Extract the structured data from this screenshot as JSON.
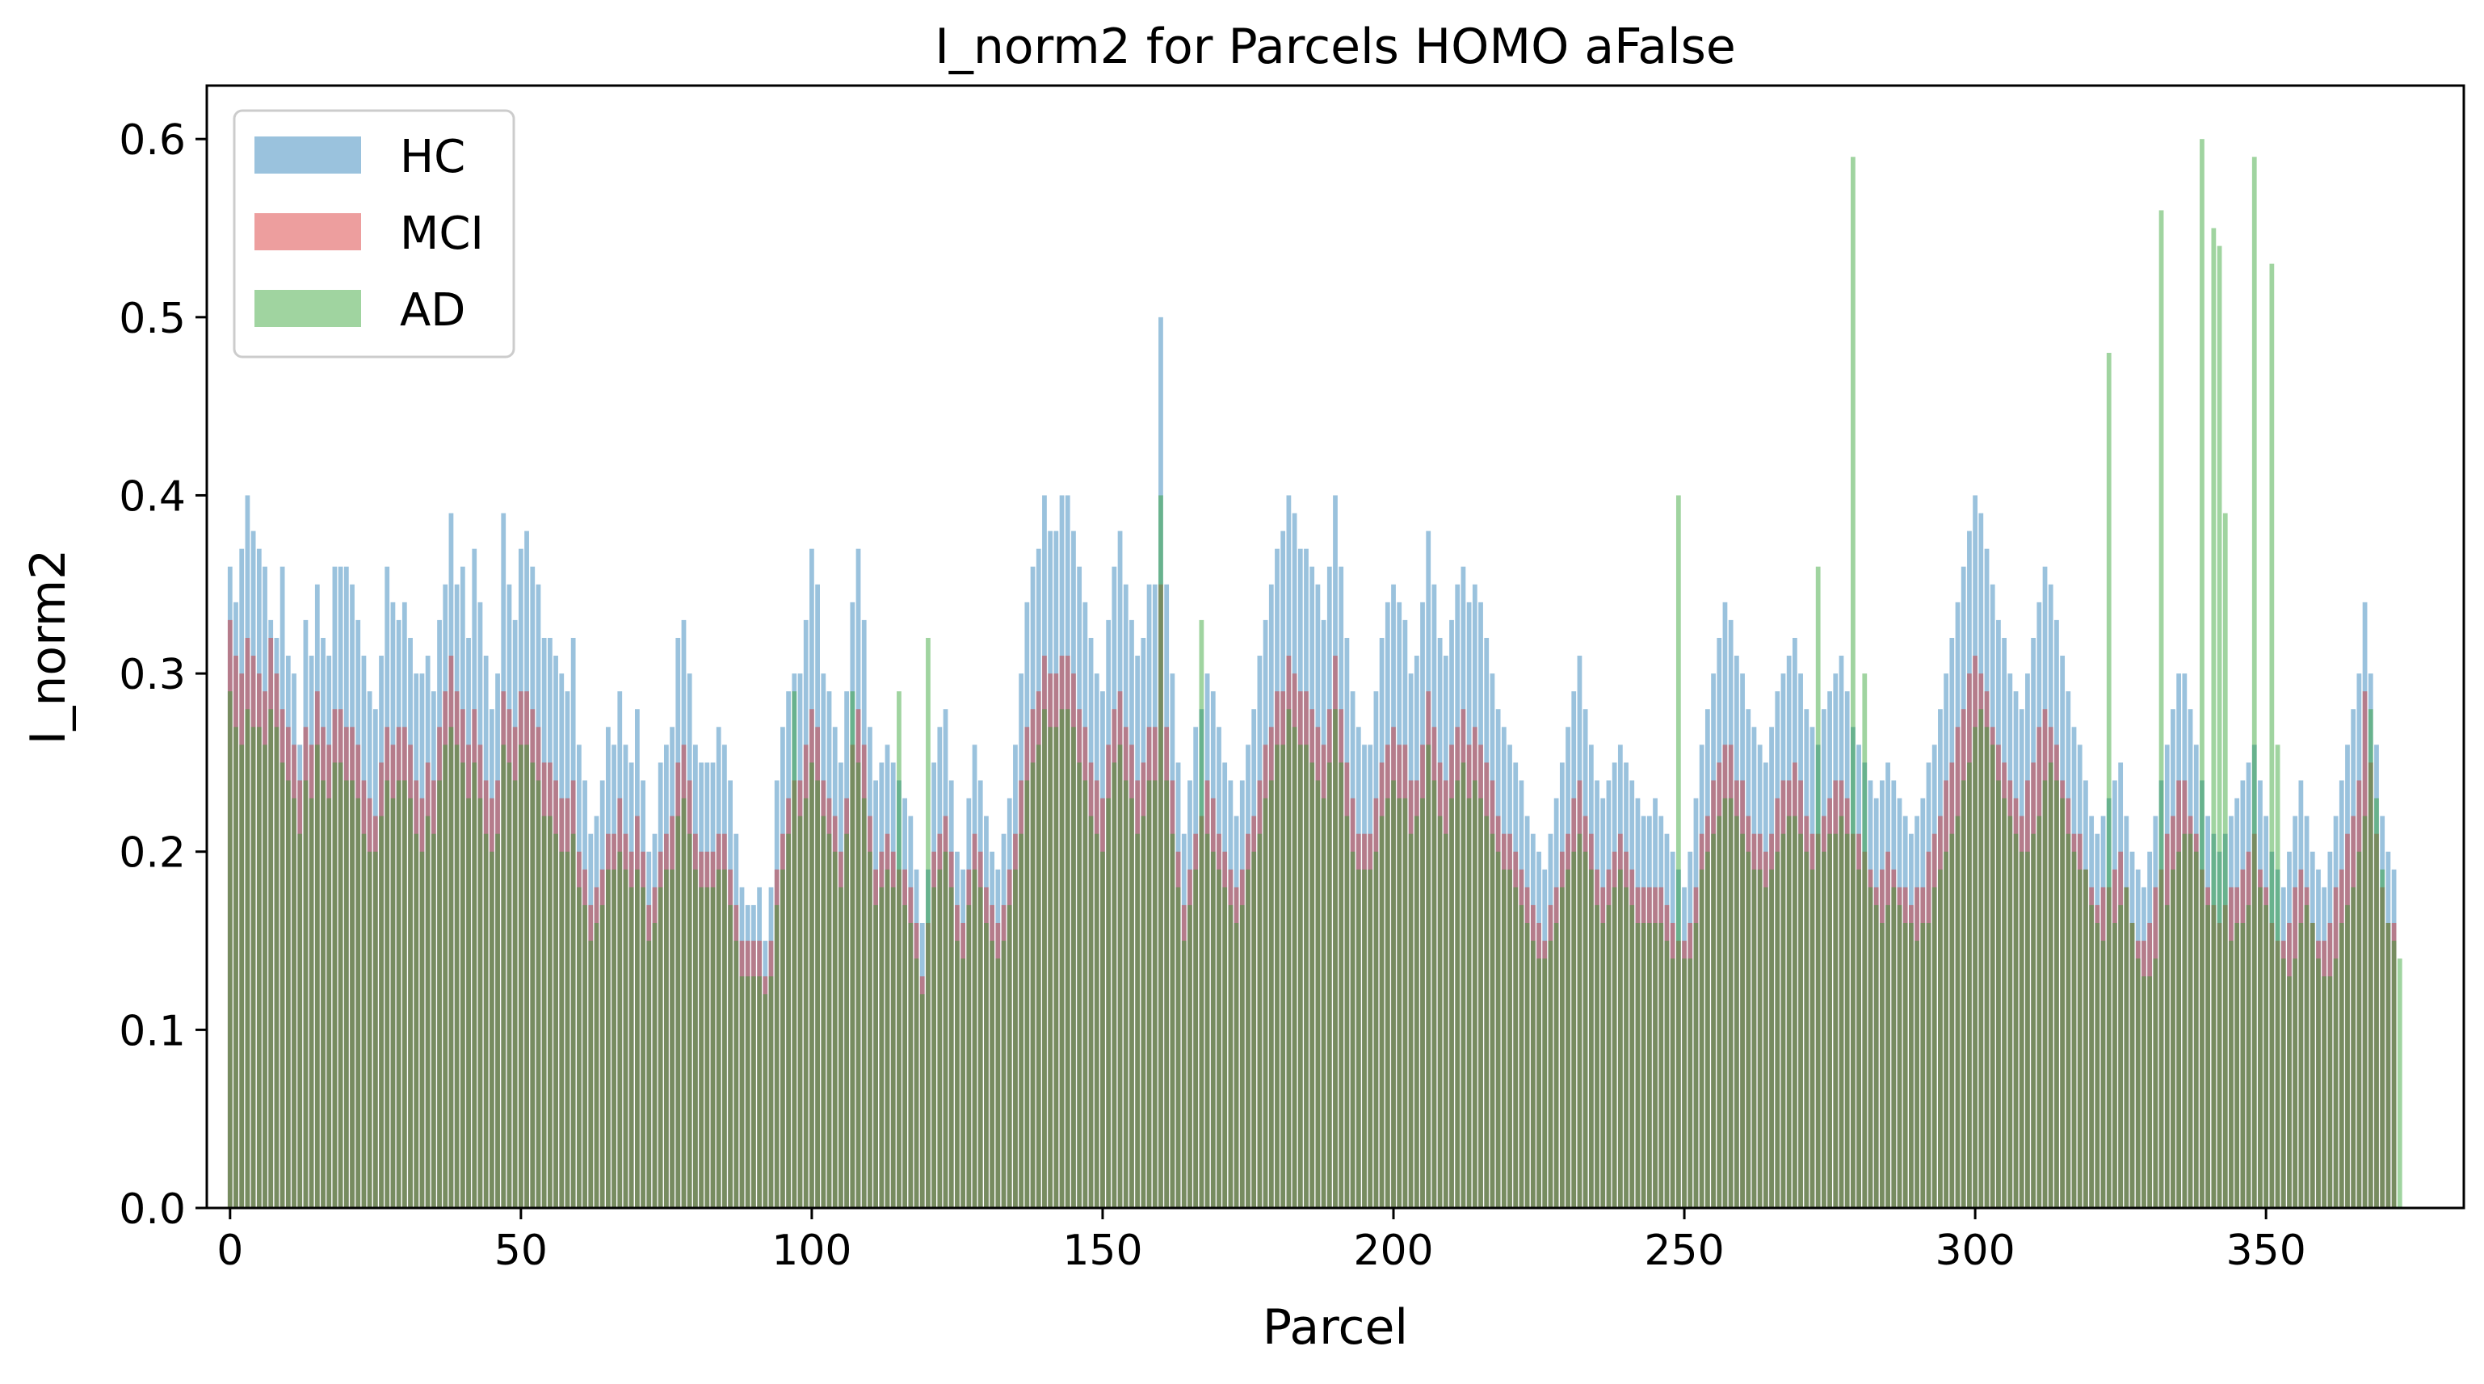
{
  "chart_data": {
    "type": "bar",
    "title": "I_norm2 for Parcels HOMO aFalse",
    "xlabel": "Parcel",
    "ylabel": "I_norm2",
    "xlim": [
      -4,
      384
    ],
    "ylim": [
      0,
      0.63
    ],
    "xticks": [
      0,
      50,
      100,
      150,
      200,
      250,
      300,
      350
    ],
    "yticks": [
      0.0,
      0.1,
      0.2,
      0.3,
      0.4,
      0.5,
      0.6
    ],
    "grid": false,
    "legend_position": "top-left",
    "x": "parcel indices 0-378 (one bar per parcel)",
    "series": [
      {
        "name": "HC",
        "color": "#1f77b4",
        "opacity": 0.45,
        "values": [
          0.36,
          0.34,
          0.37,
          0.4,
          0.38,
          0.37,
          0.36,
          0.33,
          0.32,
          0.36,
          0.31,
          0.3,
          0.26,
          0.33,
          0.31,
          0.35,
          0.32,
          0.31,
          0.36,
          0.36,
          0.36,
          0.35,
          0.33,
          0.31,
          0.29,
          0.28,
          0.31,
          0.36,
          0.34,
          0.33,
          0.34,
          0.32,
          0.3,
          0.3,
          0.31,
          0.29,
          0.33,
          0.35,
          0.39,
          0.35,
          0.36,
          0.32,
          0.37,
          0.34,
          0.31,
          0.28,
          0.3,
          0.39,
          0.35,
          0.33,
          0.37,
          0.38,
          0.36,
          0.35,
          0.32,
          0.32,
          0.31,
          0.3,
          0.29,
          0.32,
          0.26,
          0.24,
          0.21,
          0.22,
          0.24,
          0.27,
          0.26,
          0.29,
          0.26,
          0.25,
          0.28,
          0.24,
          0.2,
          0.21,
          0.25,
          0.26,
          0.27,
          0.32,
          0.33,
          0.3,
          0.26,
          0.25,
          0.25,
          0.25,
          0.27,
          0.26,
          0.24,
          0.21,
          0.18,
          0.17,
          0.17,
          0.18,
          0.15,
          0.18,
          0.24,
          0.27,
          0.29,
          0.3,
          0.3,
          0.33,
          0.37,
          0.35,
          0.3,
          0.29,
          0.27,
          0.25,
          0.29,
          0.34,
          0.37,
          0.33,
          0.27,
          0.24,
          0.25,
          0.26,
          0.25,
          0.24,
          0.23,
          0.22,
          0.19,
          0.16,
          0.19,
          0.25,
          0.27,
          0.28,
          0.24,
          0.2,
          0.19,
          0.23,
          0.26,
          0.24,
          0.22,
          0.2,
          0.19,
          0.21,
          0.23,
          0.26,
          0.3,
          0.34,
          0.36,
          0.37,
          0.4,
          0.38,
          0.38,
          0.4,
          0.4,
          0.38,
          0.36,
          0.34,
          0.32,
          0.3,
          0.29,
          0.33,
          0.36,
          0.38,
          0.35,
          0.33,
          0.31,
          0.32,
          0.35,
          0.35,
          0.5,
          0.35,
          0.3,
          0.25,
          0.21,
          0.24,
          0.27,
          0.28,
          0.3,
          0.29,
          0.27,
          0.25,
          0.24,
          0.22,
          0.24,
          0.26,
          0.28,
          0.31,
          0.33,
          0.35,
          0.37,
          0.38,
          0.4,
          0.39,
          0.37,
          0.37,
          0.36,
          0.35,
          0.33,
          0.36,
          0.4,
          0.36,
          0.32,
          0.29,
          0.27,
          0.26,
          0.26,
          0.29,
          0.32,
          0.34,
          0.35,
          0.34,
          0.33,
          0.3,
          0.31,
          0.34,
          0.38,
          0.35,
          0.32,
          0.31,
          0.33,
          0.35,
          0.36,
          0.34,
          0.35,
          0.34,
          0.32,
          0.3,
          0.28,
          0.27,
          0.26,
          0.25,
          0.24,
          0.22,
          0.21,
          0.2,
          0.19,
          0.21,
          0.23,
          0.25,
          0.27,
          0.29,
          0.31,
          0.28,
          0.26,
          0.24,
          0.23,
          0.24,
          0.25,
          0.26,
          0.25,
          0.24,
          0.23,
          0.22,
          0.22,
          0.23,
          0.22,
          0.21,
          0.2,
          0.19,
          0.18,
          0.2,
          0.23,
          0.26,
          0.28,
          0.3,
          0.32,
          0.34,
          0.33,
          0.31,
          0.3,
          0.28,
          0.27,
          0.26,
          0.25,
          0.27,
          0.29,
          0.3,
          0.31,
          0.32,
          0.3,
          0.28,
          0.27,
          0.26,
          0.28,
          0.29,
          0.3,
          0.31,
          0.29,
          0.27,
          0.26,
          0.25,
          0.24,
          0.23,
          0.24,
          0.25,
          0.24,
          0.23,
          0.22,
          0.21,
          0.22,
          0.23,
          0.25,
          0.26,
          0.28,
          0.3,
          0.32,
          0.34,
          0.36,
          0.38,
          0.4,
          0.39,
          0.37,
          0.35,
          0.33,
          0.32,
          0.3,
          0.29,
          0.28,
          0.3,
          0.32,
          0.34,
          0.36,
          0.35,
          0.33,
          0.31,
          0.29,
          0.27,
          0.26,
          0.24,
          0.22,
          0.21,
          0.22,
          0.23,
          0.24,
          0.25,
          0.22,
          0.2,
          0.19,
          0.18,
          0.2,
          0.22,
          0.24,
          0.26,
          0.28,
          0.3,
          0.3,
          0.28,
          0.26,
          0.24,
          0.22,
          0.21,
          0.2,
          0.21,
          0.22,
          0.23,
          0.24,
          0.25,
          0.26,
          0.24,
          0.22,
          0.2,
          0.19,
          0.18,
          0.2,
          0.22,
          0.24,
          0.22,
          0.2,
          0.19,
          0.18,
          0.2,
          0.22,
          0.24,
          0.26,
          0.28,
          0.3,
          0.34,
          0.3,
          0.26,
          0.22,
          0.2,
          0.19
        ]
      },
      {
        "name": "MCI",
        "color": "#d62728",
        "opacity": 0.45,
        "values": [
          0.33,
          0.31,
          0.3,
          0.32,
          0.31,
          0.3,
          0.29,
          0.32,
          0.3,
          0.28,
          0.27,
          0.26,
          0.24,
          0.27,
          0.26,
          0.29,
          0.27,
          0.26,
          0.28,
          0.28,
          0.27,
          0.27,
          0.26,
          0.24,
          0.23,
          0.22,
          0.25,
          0.27,
          0.26,
          0.27,
          0.27,
          0.26,
          0.24,
          0.23,
          0.25,
          0.24,
          0.27,
          0.29,
          0.31,
          0.29,
          0.28,
          0.26,
          0.28,
          0.26,
          0.24,
          0.23,
          0.24,
          0.29,
          0.28,
          0.27,
          0.29,
          0.29,
          0.28,
          0.27,
          0.25,
          0.25,
          0.24,
          0.23,
          0.23,
          0.24,
          0.2,
          0.19,
          0.17,
          0.18,
          0.19,
          0.21,
          0.21,
          0.23,
          0.21,
          0.2,
          0.22,
          0.2,
          0.17,
          0.18,
          0.2,
          0.21,
          0.22,
          0.25,
          0.26,
          0.24,
          0.21,
          0.2,
          0.2,
          0.2,
          0.21,
          0.21,
          0.19,
          0.17,
          0.15,
          0.15,
          0.15,
          0.15,
          0.13,
          0.15,
          0.19,
          0.21,
          0.23,
          0.24,
          0.24,
          0.26,
          0.28,
          0.27,
          0.24,
          0.23,
          0.22,
          0.2,
          0.23,
          0.26,
          0.28,
          0.26,
          0.22,
          0.19,
          0.2,
          0.21,
          0.2,
          0.19,
          0.19,
          0.18,
          0.16,
          0.13,
          0.16,
          0.2,
          0.21,
          0.22,
          0.2,
          0.17,
          0.16,
          0.19,
          0.21,
          0.2,
          0.18,
          0.17,
          0.16,
          0.17,
          0.19,
          0.21,
          0.24,
          0.27,
          0.28,
          0.29,
          0.31,
          0.3,
          0.3,
          0.31,
          0.31,
          0.3,
          0.28,
          0.27,
          0.25,
          0.24,
          0.23,
          0.26,
          0.28,
          0.29,
          0.27,
          0.26,
          0.24,
          0.25,
          0.27,
          0.27,
          0.35,
          0.27,
          0.24,
          0.2,
          0.17,
          0.19,
          0.21,
          0.22,
          0.24,
          0.23,
          0.21,
          0.2,
          0.19,
          0.18,
          0.19,
          0.21,
          0.22,
          0.24,
          0.26,
          0.27,
          0.29,
          0.29,
          0.31,
          0.3,
          0.29,
          0.29,
          0.28,
          0.27,
          0.26,
          0.28,
          0.31,
          0.28,
          0.25,
          0.23,
          0.21,
          0.21,
          0.21,
          0.23,
          0.25,
          0.26,
          0.27,
          0.26,
          0.26,
          0.24,
          0.24,
          0.26,
          0.29,
          0.27,
          0.25,
          0.24,
          0.26,
          0.27,
          0.28,
          0.26,
          0.27,
          0.26,
          0.25,
          0.24,
          0.22,
          0.21,
          0.21,
          0.2,
          0.19,
          0.18,
          0.17,
          0.16,
          0.15,
          0.17,
          0.18,
          0.2,
          0.21,
          0.23,
          0.24,
          0.22,
          0.21,
          0.19,
          0.18,
          0.19,
          0.2,
          0.21,
          0.2,
          0.19,
          0.18,
          0.18,
          0.18,
          0.18,
          0.18,
          0.17,
          0.16,
          0.15,
          0.15,
          0.16,
          0.18,
          0.21,
          0.22,
          0.24,
          0.25,
          0.26,
          0.26,
          0.24,
          0.24,
          0.22,
          0.21,
          0.21,
          0.2,
          0.21,
          0.23,
          0.24,
          0.24,
          0.25,
          0.24,
          0.22,
          0.21,
          0.21,
          0.22,
          0.23,
          0.24,
          0.24,
          0.23,
          0.21,
          0.21,
          0.2,
          0.19,
          0.18,
          0.19,
          0.2,
          0.19,
          0.18,
          0.18,
          0.17,
          0.18,
          0.18,
          0.2,
          0.21,
          0.22,
          0.24,
          0.25,
          0.27,
          0.28,
          0.3,
          0.31,
          0.3,
          0.29,
          0.27,
          0.26,
          0.25,
          0.24,
          0.23,
          0.22,
          0.24,
          0.25,
          0.27,
          0.28,
          0.27,
          0.26,
          0.24,
          0.23,
          0.21,
          0.21,
          0.19,
          0.18,
          0.17,
          0.18,
          0.18,
          0.19,
          0.2,
          0.18,
          0.16,
          0.15,
          0.15,
          0.16,
          0.18,
          0.19,
          0.21,
          0.22,
          0.24,
          0.24,
          0.22,
          0.21,
          0.19,
          0.18,
          0.17,
          0.16,
          0.17,
          0.18,
          0.18,
          0.19,
          0.2,
          0.21,
          0.19,
          0.18,
          0.16,
          0.15,
          0.15,
          0.16,
          0.18,
          0.19,
          0.18,
          0.16,
          0.15,
          0.15,
          0.16,
          0.18,
          0.19,
          0.21,
          0.22,
          0.24,
          0.29,
          0.25,
          0.21,
          0.18,
          0.16,
          0.16
        ]
      },
      {
        "name": "AD",
        "color": "#2ca02c",
        "opacity": 0.45,
        "values": [
          0.29,
          0.27,
          0.26,
          0.28,
          0.27,
          0.27,
          0.26,
          0.28,
          0.27,
          0.25,
          0.24,
          0.23,
          0.21,
          0.24,
          0.23,
          0.26,
          0.24,
          0.23,
          0.25,
          0.25,
          0.24,
          0.24,
          0.23,
          0.21,
          0.2,
          0.2,
          0.22,
          0.24,
          0.23,
          0.24,
          0.24,
          0.23,
          0.21,
          0.2,
          0.22,
          0.21,
          0.24,
          0.26,
          0.27,
          0.26,
          0.25,
          0.23,
          0.25,
          0.23,
          0.21,
          0.2,
          0.21,
          0.26,
          0.25,
          0.24,
          0.26,
          0.26,
          0.25,
          0.24,
          0.22,
          0.22,
          0.21,
          0.2,
          0.2,
          0.21,
          0.18,
          0.17,
          0.15,
          0.16,
          0.17,
          0.19,
          0.19,
          0.2,
          0.19,
          0.18,
          0.19,
          0.18,
          0.15,
          0.16,
          0.18,
          0.19,
          0.19,
          0.22,
          0.23,
          0.21,
          0.19,
          0.18,
          0.18,
          0.18,
          0.19,
          0.19,
          0.17,
          0.15,
          0.13,
          0.13,
          0.13,
          0.13,
          0.12,
          0.13,
          0.17,
          0.19,
          0.21,
          0.29,
          0.22,
          0.23,
          0.25,
          0.24,
          0.22,
          0.21,
          0.2,
          0.18,
          0.21,
          0.29,
          0.25,
          0.23,
          0.2,
          0.17,
          0.18,
          0.19,
          0.18,
          0.29,
          0.17,
          0.16,
          0.14,
          0.12,
          0.32,
          0.18,
          0.19,
          0.2,
          0.18,
          0.15,
          0.14,
          0.17,
          0.19,
          0.18,
          0.16,
          0.15,
          0.14,
          0.15,
          0.17,
          0.19,
          0.21,
          0.24,
          0.25,
          0.26,
          0.28,
          0.27,
          0.27,
          0.28,
          0.28,
          0.27,
          0.25,
          0.24,
          0.22,
          0.21,
          0.2,
          0.23,
          0.25,
          0.26,
          0.24,
          0.23,
          0.21,
          0.22,
          0.24,
          0.24,
          0.4,
          0.24,
          0.21,
          0.18,
          0.15,
          0.17,
          0.19,
          0.33,
          0.21,
          0.2,
          0.19,
          0.18,
          0.17,
          0.16,
          0.17,
          0.19,
          0.2,
          0.21,
          0.23,
          0.24,
          0.26,
          0.26,
          0.28,
          0.27,
          0.26,
          0.26,
          0.25,
          0.24,
          0.23,
          0.25,
          0.28,
          0.25,
          0.22,
          0.2,
          0.19,
          0.19,
          0.19,
          0.2,
          0.22,
          0.23,
          0.24,
          0.23,
          0.23,
          0.21,
          0.22,
          0.23,
          0.26,
          0.24,
          0.22,
          0.21,
          0.23,
          0.24,
          0.25,
          0.23,
          0.24,
          0.23,
          0.22,
          0.21,
          0.2,
          0.19,
          0.19,
          0.18,
          0.17,
          0.16,
          0.15,
          0.14,
          0.14,
          0.15,
          0.16,
          0.18,
          0.19,
          0.2,
          0.21,
          0.2,
          0.19,
          0.17,
          0.16,
          0.17,
          0.18,
          0.19,
          0.18,
          0.17,
          0.16,
          0.16,
          0.16,
          0.16,
          0.16,
          0.15,
          0.14,
          0.4,
          0.14,
          0.14,
          0.16,
          0.19,
          0.2,
          0.21,
          0.22,
          0.23,
          0.23,
          0.22,
          0.21,
          0.2,
          0.19,
          0.19,
          0.18,
          0.19,
          0.2,
          0.21,
          0.22,
          0.22,
          0.21,
          0.2,
          0.19,
          0.36,
          0.2,
          0.21,
          0.21,
          0.22,
          0.21,
          0.59,
          0.19,
          0.3,
          0.18,
          0.17,
          0.16,
          0.17,
          0.18,
          0.17,
          0.16,
          0.16,
          0.15,
          0.16,
          0.16,
          0.18,
          0.19,
          0.2,
          0.21,
          0.22,
          0.24,
          0.25,
          0.27,
          0.28,
          0.27,
          0.26,
          0.24,
          0.23,
          0.22,
          0.21,
          0.2,
          0.2,
          0.21,
          0.22,
          0.24,
          0.25,
          0.24,
          0.23,
          0.21,
          0.2,
          0.19,
          0.19,
          0.17,
          0.16,
          0.15,
          0.48,
          0.16,
          0.17,
          0.18,
          0.16,
          0.14,
          0.13,
          0.13,
          0.14,
          0.56,
          0.17,
          0.19,
          0.2,
          0.21,
          0.21,
          0.2,
          0.6,
          0.17,
          0.55,
          0.54,
          0.39,
          0.15,
          0.16,
          0.16,
          0.17,
          0.59,
          0.18,
          0.17,
          0.53,
          0.26,
          0.14,
          0.13,
          0.14,
          0.16,
          0.17,
          0.16,
          0.14,
          0.13,
          0.13,
          0.14,
          0.16,
          0.17,
          0.18,
          0.2,
          0.22,
          0.28,
          0.23,
          0.19,
          0.16,
          0.15,
          0.14
        ]
      }
    ]
  }
}
